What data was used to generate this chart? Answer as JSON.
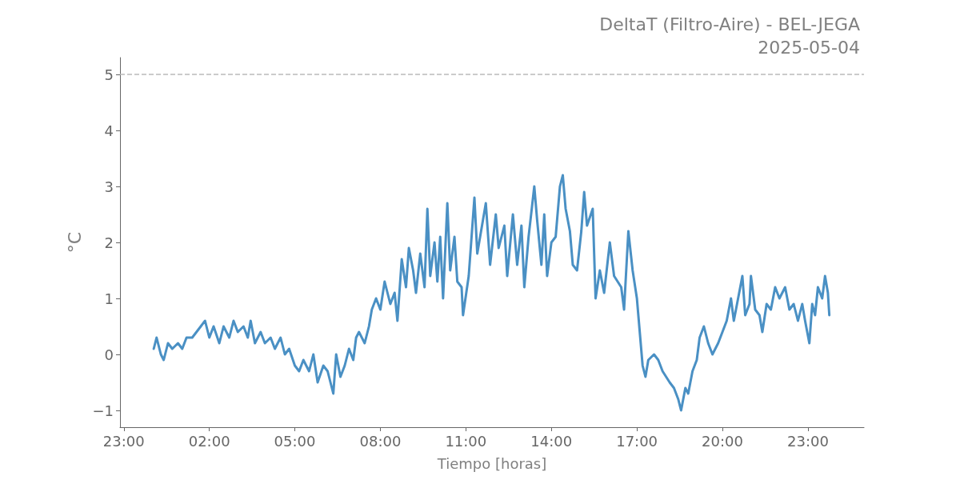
{
  "chart_data": {
    "type": "line",
    "title": "DeltaT (Filtro-Aire) - BEL-JEGA",
    "subtitle": "2025-05-04",
    "xlabel": "Tiempo [horas]",
    "ylabel": "°C",
    "xlim": [
      "2025-05-03T22:52",
      "2025-05-05T00:58"
    ],
    "xticks": [
      {
        "value": "2025-05-03T23:00",
        "label": "23:00"
      },
      {
        "value": "2025-05-04T02:00",
        "label": "02:00"
      },
      {
        "value": "2025-05-04T05:00",
        "label": "05:00"
      },
      {
        "value": "2025-05-04T08:00",
        "label": "08:00"
      },
      {
        "value": "2025-05-04T11:00",
        "label": "11:00"
      },
      {
        "value": "2025-05-04T14:00",
        "label": "14:00"
      },
      {
        "value": "2025-05-04T17:00",
        "label": "17:00"
      },
      {
        "value": "2025-05-04T20:00",
        "label": "20:00"
      },
      {
        "value": "2025-05-04T23:00",
        "label": "23:00"
      }
    ],
    "ylim": [
      -1.3,
      5.3
    ],
    "yticks": [
      {
        "value": -1,
        "label": "−1"
      },
      0,
      1,
      2,
      3,
      4,
      5
    ],
    "marker": "none",
    "line_style": "solid",
    "ref_lines": [
      {
        "axis": "y",
        "value": 5,
        "label": null,
        "color": "#bbbbbb",
        "line_style": "dashed"
      }
    ],
    "series": [
      {
        "color": "#4a90c4",
        "x": [
          "2025-05-04T00:03",
          "2025-05-04T00:09",
          "2025-05-04T00:18",
          "2025-05-04T00:24",
          "2025-05-04T00:33",
          "2025-05-04T00:42",
          "2025-05-04T00:54",
          "2025-05-04T01:03",
          "2025-05-04T01:12",
          "2025-05-04T01:24",
          "2025-05-04T01:33",
          "2025-05-04T01:42",
          "2025-05-04T01:51",
          "2025-05-04T02:00",
          "2025-05-04T02:09",
          "2025-05-04T02:21",
          "2025-05-04T02:30",
          "2025-05-04T02:42",
          "2025-05-04T02:51",
          "2025-05-04T03:00",
          "2025-05-04T03:12",
          "2025-05-04T03:21",
          "2025-05-04T03:27",
          "2025-05-04T03:36",
          "2025-05-04T03:48",
          "2025-05-04T03:57",
          "2025-05-04T04:09",
          "2025-05-04T04:18",
          "2025-05-04T04:30",
          "2025-05-04T04:39",
          "2025-05-04T04:48",
          "2025-05-04T05:00",
          "2025-05-04T05:09",
          "2025-05-04T05:18",
          "2025-05-04T05:30",
          "2025-05-04T05:39",
          "2025-05-04T05:48",
          "2025-05-04T06:00",
          "2025-05-04T06:09",
          "2025-05-04T06:18",
          "2025-05-04T06:21",
          "2025-05-04T06:27",
          "2025-05-04T06:36",
          "2025-05-04T06:45",
          "2025-05-04T06:54",
          "2025-05-04T07:03",
          "2025-05-04T07:09",
          "2025-05-04T07:15",
          "2025-05-04T07:27",
          "2025-05-04T07:36",
          "2025-05-04T07:42",
          "2025-05-04T07:51",
          "2025-05-04T08:00",
          "2025-05-04T08:09",
          "2025-05-04T08:21",
          "2025-05-04T08:30",
          "2025-05-04T08:36",
          "2025-05-04T08:45",
          "2025-05-04T08:54",
          "2025-05-04T09:00",
          "2025-05-04T09:09",
          "2025-05-04T09:15",
          "2025-05-04T09:24",
          "2025-05-04T09:33",
          "2025-05-04T09:39",
          "2025-05-04T09:45",
          "2025-05-04T09:54",
          "2025-05-04T10:00",
          "2025-05-04T10:06",
          "2025-05-04T10:12",
          "2025-05-04T10:21",
          "2025-05-04T10:27",
          "2025-05-04T10:36",
          "2025-05-04T10:42",
          "2025-05-04T10:51",
          "2025-05-04T10:54",
          "2025-05-04T11:06",
          "2025-05-04T11:18",
          "2025-05-04T11:24",
          "2025-05-04T11:42",
          "2025-05-04T11:51",
          "2025-05-04T12:03",
          "2025-05-04T12:09",
          "2025-05-04T12:21",
          "2025-05-04T12:27",
          "2025-05-04T12:39",
          "2025-05-04T12:48",
          "2025-05-04T12:57",
          "2025-05-04T13:03",
          "2025-05-04T13:12",
          "2025-05-04T13:24",
          "2025-05-04T13:30",
          "2025-05-04T13:39",
          "2025-05-04T13:45",
          "2025-05-04T13:51",
          "2025-05-04T14:00",
          "2025-05-04T14:09",
          "2025-05-04T14:18",
          "2025-05-04T14:24",
          "2025-05-04T14:30",
          "2025-05-04T14:39",
          "2025-05-04T14:45",
          "2025-05-04T14:54",
          "2025-05-04T15:03",
          "2025-05-04T15:09",
          "2025-05-04T15:15",
          "2025-05-04T15:27",
          "2025-05-04T15:33",
          "2025-05-04T15:42",
          "2025-05-04T15:51",
          "2025-05-04T16:03",
          "2025-05-04T16:12",
          "2025-05-04T16:27",
          "2025-05-04T16:33",
          "2025-05-04T16:42",
          "2025-05-04T16:51",
          "2025-05-04T17:00",
          "2025-05-04T17:06",
          "2025-05-04T17:12",
          "2025-05-04T17:18",
          "2025-05-04T17:24",
          "2025-05-04T17:36",
          "2025-05-04T17:45",
          "2025-05-04T17:54",
          "2025-05-04T18:09",
          "2025-05-04T18:18",
          "2025-05-04T18:27",
          "2025-05-04T18:33",
          "2025-05-04T18:42",
          "2025-05-04T18:48",
          "2025-05-04T18:57",
          "2025-05-04T19:06",
          "2025-05-04T19:12",
          "2025-05-04T19:21",
          "2025-05-04T19:30",
          "2025-05-04T19:39",
          "2025-05-04T19:51",
          "2025-05-04T20:00",
          "2025-05-04T20:09",
          "2025-05-04T20:18",
          "2025-05-04T20:24",
          "2025-05-04T20:33",
          "2025-05-04T20:42",
          "2025-05-04T20:48",
          "2025-05-04T20:57",
          "2025-05-04T21:00",
          "2025-05-04T21:09",
          "2025-05-04T21:18",
          "2025-05-04T21:24",
          "2025-05-04T21:33",
          "2025-05-04T21:42",
          "2025-05-04T21:51",
          "2025-05-04T22:00",
          "2025-05-04T22:12",
          "2025-05-04T22:21",
          "2025-05-04T22:30",
          "2025-05-04T22:39",
          "2025-05-04T22:48",
          "2025-05-04T22:54",
          "2025-05-04T23:03",
          "2025-05-04T23:09",
          "2025-05-04T23:15",
          "2025-05-04T23:21",
          "2025-05-04T23:30",
          "2025-05-04T23:36",
          "2025-05-04T23:42",
          "2025-05-04T23:45"
        ],
        "values": [
          0.1,
          0.3,
          0.0,
          -0.1,
          0.2,
          0.1,
          0.2,
          0.1,
          0.3,
          0.3,
          0.4,
          0.5,
          0.6,
          0.3,
          0.5,
          0.2,
          0.5,
          0.3,
          0.6,
          0.4,
          0.5,
          0.3,
          0.6,
          0.2,
          0.4,
          0.2,
          0.3,
          0.1,
          0.3,
          0.0,
          0.1,
          -0.2,
          -0.3,
          -0.1,
          -0.3,
          0.0,
          -0.5,
          -0.2,
          -0.3,
          -0.6,
          -0.7,
          0.0,
          -0.4,
          -0.2,
          0.1,
          -0.1,
          0.3,
          0.4,
          0.2,
          0.5,
          0.8,
          1.0,
          0.8,
          1.3,
          0.9,
          1.1,
          0.6,
          1.7,
          1.2,
          1.9,
          1.5,
          1.1,
          1.8,
          1.2,
          2.6,
          1.4,
          2.0,
          1.3,
          2.1,
          1.0,
          2.7,
          1.5,
          2.1,
          1.3,
          1.2,
          0.7,
          1.4,
          2.8,
          1.8,
          2.7,
          1.6,
          2.5,
          1.9,
          2.3,
          1.4,
          2.5,
          1.6,
          2.3,
          1.2,
          2.1,
          3.0,
          2.4,
          1.6,
          2.5,
          1.4,
          2.0,
          2.1,
          3.0,
          3.2,
          2.6,
          2.2,
          1.6,
          1.5,
          2.2,
          2.9,
          2.3,
          2.6,
          1.0,
          1.5,
          1.1,
          2.0,
          1.4,
          1.2,
          0.8,
          2.2,
          1.5,
          1.0,
          0.4,
          -0.2,
          -0.4,
          -0.1,
          0.0,
          -0.1,
          -0.3,
          -0.5,
          -0.6,
          -0.8,
          -1.0,
          -0.6,
          -0.7,
          -0.3,
          -0.1,
          0.3,
          0.5,
          0.2,
          0.0,
          0.2,
          0.4,
          0.6,
          1.0,
          0.6,
          1.0,
          1.4,
          0.7,
          0.9,
          1.4,
          0.8,
          0.7,
          0.4,
          0.9,
          0.8,
          1.2,
          1.0,
          1.2,
          0.8,
          0.9,
          0.6,
          0.9,
          0.6,
          0.2,
          0.9,
          0.7,
          1.2,
          1.0,
          1.4,
          1.1,
          0.7
        ]
      }
    ]
  }
}
